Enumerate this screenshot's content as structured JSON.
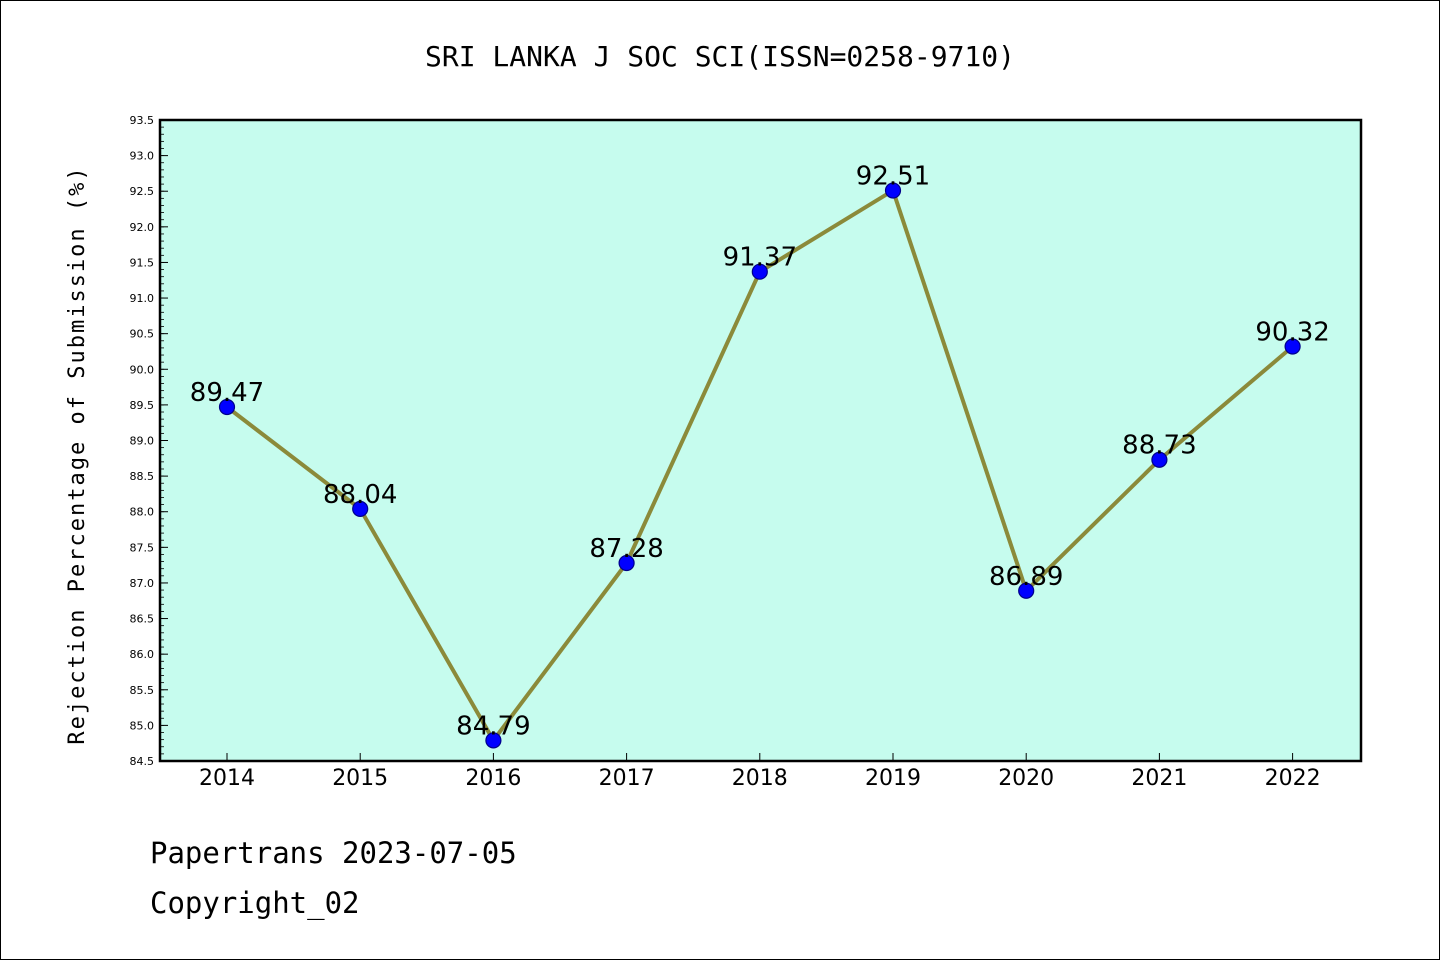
{
  "chart_data": {
    "type": "line",
    "title": "SRI LANKA J SOC SCI(ISSN=0258-9710)",
    "ylabel": "Rejection Percentage of Submission (%)",
    "xlabel": "",
    "categories": [
      "2014",
      "2015",
      "2016",
      "2017",
      "2018",
      "2019",
      "2020",
      "2021",
      "2022"
    ],
    "values": [
      89.47,
      88.04,
      84.79,
      87.28,
      91.37,
      92.51,
      86.89,
      88.73,
      90.32
    ],
    "data_labels": [
      "89.47",
      "88.04",
      "84.79",
      "87.28",
      "91.37",
      "92.51",
      "86.89",
      "88.73",
      "90.32"
    ],
    "ylim": [
      84.5,
      93.5
    ],
    "yticks": [
      "84.5",
      "85.0",
      "85.5",
      "86.0",
      "86.5",
      "87.0",
      "87.5",
      "88.0",
      "88.5",
      "89.0",
      "89.5",
      "90.0",
      "90.5",
      "91.0",
      "91.5",
      "92.0",
      "92.5",
      "93.0",
      "93.5"
    ],
    "grid": false,
    "colors": {
      "plot_background": "#c6fcee",
      "line": "#8b8a3a",
      "marker": "#0000ff",
      "marker_edge": "#00008b"
    }
  },
  "footer": {
    "line1": "Papertrans 2023-07-05",
    "line2": "Copyright_02"
  }
}
